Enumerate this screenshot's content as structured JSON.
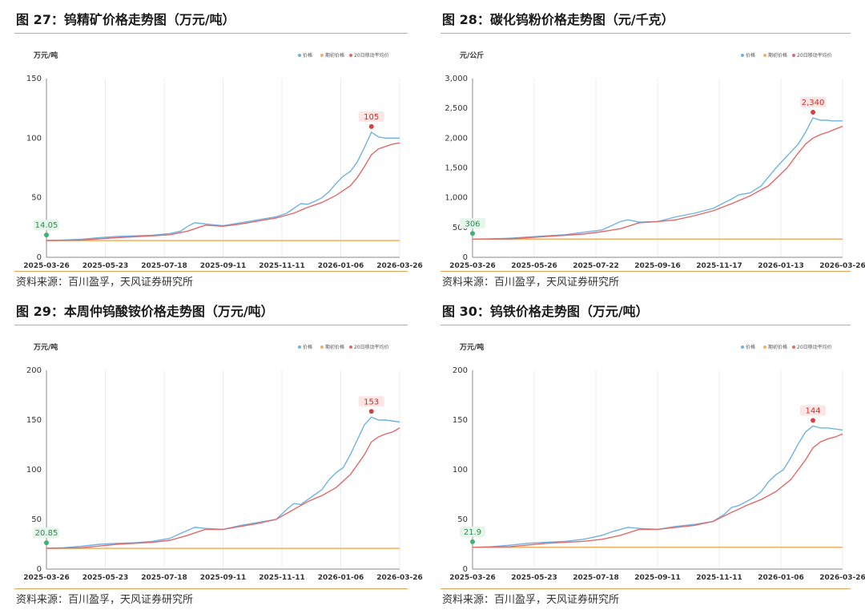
{
  "panels": [
    {
      "title": "图 27：钨精矿价格走势图（万元/吨）",
      "source": "资料来源：百川盈孚，天风证券研究所",
      "chart_data": {
        "type": "line",
        "unit_label": "万元/吨",
        "ylim": [
          0,
          150
        ],
        "yticks": [
          0,
          50,
          100,
          150
        ],
        "xticks": [
          "2025-03-26",
          "2025-05-23",
          "2025-07-18",
          "2025-09-11",
          "2025-11-11",
          "2026-01-06",
          "2026-03-26"
        ],
        "legend": [
          "价格",
          "期初价格",
          "20日移动平均价"
        ],
        "colors": {
          "price": "#6fb3e3",
          "base": "#f0b060",
          "ma": "#e06a6a",
          "start": "#3cb371",
          "peak": "#d94040"
        },
        "series": [
          {
            "name": "价格",
            "x": [
              0,
              0.05,
              0.1,
              0.15,
              0.2,
              0.25,
              0.3,
              0.35,
              0.38,
              0.4,
              0.42,
              0.45,
              0.5,
              0.55,
              0.6,
              0.65,
              0.68,
              0.7,
              0.72,
              0.74,
              0.76,
              0.78,
              0.8,
              0.82,
              0.84,
              0.86,
              0.88,
              0.9,
              0.92,
              0.94,
              0.96,
              1.0
            ],
            "values": [
              14.05,
              14.5,
              15.2,
              16.5,
              17.5,
              18,
              18.5,
              20,
              22,
              26,
              29,
              28,
              26.5,
              29,
              31.5,
              34,
              37,
              41,
              45,
              44.5,
              47,
              50,
              55,
              62,
              68,
              72,
              80,
              92,
              105,
              101,
              100,
              100
            ]
          },
          {
            "name": "期初价格",
            "x": [
              0,
              1
            ],
            "values": [
              14.05,
              14.05
            ]
          },
          {
            "name": "20日移动平均价",
            "x": [
              0,
              0.1,
              0.2,
              0.3,
              0.35,
              0.4,
              0.45,
              0.5,
              0.55,
              0.6,
              0.65,
              0.7,
              0.74,
              0.78,
              0.82,
              0.86,
              0.88,
              0.9,
              0.92,
              0.94,
              0.96,
              0.98,
              1.0
            ],
            "values": [
              14.05,
              14.5,
              16.5,
              18,
              19,
              22,
              27,
              26,
              28,
              30.5,
              33,
              37,
              42,
              46,
              52,
              60,
              67,
              76,
              86,
              91,
              93,
              95,
              96
            ]
          }
        ],
        "start_label": "14.05",
        "peak_label": "105",
        "peak_x": 0.92
      }
    },
    {
      "title": "图 28：碳化钨粉价格走势图（元/千克）",
      "source": "资料来源：百川盈孚，天风证券研究所",
      "chart_data": {
        "type": "line",
        "unit_label": "元/公斤",
        "ylim": [
          0,
          3000
        ],
        "yticks": [
          0,
          500,
          1000,
          1500,
          2000,
          2500,
          3000
        ],
        "ytick_labels": [
          "0",
          "500",
          "1,000",
          "1,500",
          "2,000",
          "2,500",
          "3,000"
        ],
        "xticks": [
          "2025-03-26",
          "2025-05-26",
          "2025-07-22",
          "2025-09-16",
          "2025-11-17",
          "2026-01-13",
          "2026-03-26"
        ],
        "legend": [
          "价格",
          "期初价格",
          "20日移动平均价"
        ],
        "colors": {
          "price": "#6fb3e3",
          "base": "#f0b060",
          "ma": "#e06a6a",
          "start": "#3cb371",
          "peak": "#d94040"
        },
        "series": [
          {
            "name": "价格",
            "x": [
              0,
              0.05,
              0.1,
              0.15,
              0.2,
              0.25,
              0.3,
              0.35,
              0.4,
              0.42,
              0.45,
              0.5,
              0.55,
              0.6,
              0.65,
              0.7,
              0.72,
              0.75,
              0.78,
              0.82,
              0.85,
              0.88,
              0.9,
              0.92,
              0.94,
              0.96,
              0.97,
              1.0
            ],
            "values": [
              306,
              310,
              320,
              340,
              360,
              380,
              420,
              460,
              600,
              630,
              590,
              600,
              680,
              740,
              820,
              980,
              1050,
              1080,
              1200,
              1500,
              1700,
              1900,
              2100,
              2340,
              2300,
              2300,
              2290,
              2290
            ]
          },
          {
            "name": "期初价格",
            "x": [
              0,
              1
            ],
            "values": [
              306,
              306
            ]
          },
          {
            "name": "20日移动平均价",
            "x": [
              0,
              0.1,
              0.2,
              0.3,
              0.35,
              0.4,
              0.45,
              0.5,
              0.55,
              0.6,
              0.65,
              0.7,
              0.75,
              0.8,
              0.85,
              0.88,
              0.9,
              0.92,
              0.94,
              0.96,
              0.98,
              1.0
            ],
            "values": [
              306,
              310,
              350,
              390,
              430,
              480,
              580,
              600,
              630,
              700,
              780,
              900,
              1030,
              1200,
              1500,
              1750,
              1900,
              2000,
              2060,
              2100,
              2150,
              2200
            ]
          }
        ],
        "start_label": "306",
        "peak_label": "2,340",
        "peak_x": 0.92
      }
    },
    {
      "title": "图 29：本周仲钨酸铵价格走势图（万元/吨）",
      "source": "资料来源：百川盈孚，天风证券研究所",
      "chart_data": {
        "type": "line",
        "unit_label": "万元/吨",
        "ylim": [
          0,
          200
        ],
        "yticks": [
          0,
          50,
          100,
          150,
          200
        ],
        "xticks": [
          "2025-03-26",
          "2025-05-23",
          "2025-07-18",
          "2025-09-11",
          "2025-11-11",
          "2026-01-06",
          "2026-03-26"
        ],
        "legend": [
          "价格",
          "期初价格",
          "20日移动平均价"
        ],
        "colors": {
          "price": "#6fb3e3",
          "base": "#f0b060",
          "ma": "#e06a6a",
          "start": "#3cb371",
          "peak": "#d94040"
        },
        "series": [
          {
            "name": "价格",
            "x": [
              0,
              0.05,
              0.1,
              0.15,
              0.2,
              0.25,
              0.3,
              0.35,
              0.38,
              0.42,
              0.45,
              0.5,
              0.55,
              0.6,
              0.65,
              0.68,
              0.7,
              0.72,
              0.74,
              0.76,
              0.78,
              0.8,
              0.82,
              0.84,
              0.86,
              0.88,
              0.9,
              0.92,
              0.94,
              0.96,
              1.0
            ],
            "values": [
              20.85,
              21.5,
              23,
              25,
              26,
              26.5,
              28,
              31,
              36,
              42,
              41,
              40,
              44,
              47,
              50,
              60,
              66,
              65,
              70,
              75,
              80,
              90,
              97,
              102,
              115,
              130,
              145,
              153,
              150,
              150,
              148
            ]
          },
          {
            "name": "期初价格",
            "x": [
              0,
              1
            ],
            "values": [
              20.85,
              20.85
            ]
          },
          {
            "name": "20日移动平均价",
            "x": [
              0,
              0.1,
              0.2,
              0.3,
              0.35,
              0.4,
              0.45,
              0.5,
              0.55,
              0.6,
              0.65,
              0.7,
              0.74,
              0.78,
              0.82,
              0.86,
              0.88,
              0.9,
              0.92,
              0.94,
              0.96,
              0.98,
              1.0
            ],
            "values": [
              20.85,
              21.5,
              25,
              27,
              29,
              34,
              40,
              40,
              43,
              46,
              50,
              60,
              68,
              74,
              82,
              95,
              105,
              115,
              128,
              133,
              136,
              138,
              142
            ]
          }
        ],
        "start_label": "20.85",
        "peak_label": "153",
        "peak_x": 0.92
      }
    },
    {
      "title": "图 30：钨铁价格走势图（万元/吨）",
      "source": "资料来源：百川盈孚，天风证券研究所",
      "chart_data": {
        "type": "line",
        "unit_label": "万元/吨",
        "ylim": [
          0,
          200
        ],
        "yticks": [
          0,
          50,
          100,
          150,
          200
        ],
        "xticks": [
          "2025-03-26",
          "2025-05-23",
          "2025-07-18",
          "2025-09-11",
          "2025-11-11",
          "2026-01-06",
          "2026-03-26"
        ],
        "legend": [
          "价格",
          "期初价格",
          "20日移动平均价"
        ],
        "colors": {
          "price": "#6fb3e3",
          "base": "#f0b060",
          "ma": "#e06a6a",
          "start": "#3cb371",
          "peak": "#d94040"
        },
        "series": [
          {
            "name": "价格",
            "x": [
              0,
              0.05,
              0.1,
              0.15,
              0.2,
              0.25,
              0.3,
              0.35,
              0.38,
              0.42,
              0.45,
              0.5,
              0.55,
              0.6,
              0.65,
              0.68,
              0.7,
              0.72,
              0.74,
              0.76,
              0.78,
              0.8,
              0.82,
              0.84,
              0.86,
              0.88,
              0.9,
              0.92,
              0.94,
              0.96,
              1.0
            ],
            "values": [
              21.9,
              22.5,
              24,
              26,
              27,
              28,
              30,
              34,
              38,
              42,
              41,
              40,
              43,
              45,
              48,
              55,
              62,
              64,
              68,
              72,
              78,
              88,
              95,
              100,
              112,
              126,
              138,
              144,
              142,
              142,
              140
            ]
          },
          {
            "name": "期初价格",
            "x": [
              0,
              1
            ],
            "values": [
              21.9,
              21.9
            ]
          },
          {
            "name": "20日移动平均价",
            "x": [
              0,
              0.1,
              0.2,
              0.3,
              0.35,
              0.4,
              0.45,
              0.5,
              0.55,
              0.6,
              0.65,
              0.7,
              0.74,
              0.78,
              0.82,
              0.86,
              0.88,
              0.9,
              0.92,
              0.94,
              0.96,
              0.98,
              1.0
            ],
            "values": [
              21.9,
              22.5,
              26,
              28,
              30,
              34,
              40,
              40,
              42,
              44,
              48,
              57,
              64,
              70,
              78,
              90,
              100,
              110,
              122,
              128,
              131,
              133,
              136
            ]
          }
        ],
        "start_label": "21.9",
        "peak_label": "144",
        "peak_x": 0.92
      }
    }
  ]
}
